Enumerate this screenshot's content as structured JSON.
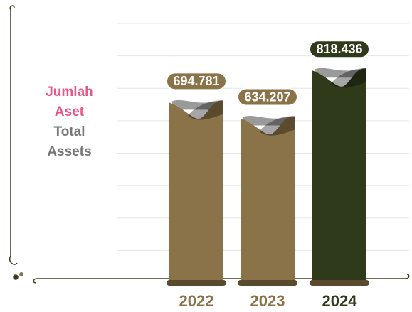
{
  "chart_data": {
    "type": "bar",
    "y_label": "Jumlah Aset",
    "y_label_en": "Total Assets",
    "categories": [
      "2022",
      "2023",
      "2024"
    ],
    "values": [
      694781,
      634207,
      818436
    ],
    "value_labels": [
      "694.781",
      "634.207",
      "818.436"
    ],
    "colors": [
      "#8b7349",
      "#8b7349",
      "#2f3a1a"
    ],
    "ylim": [
      0,
      1000000
    ],
    "grid": true
  }
}
